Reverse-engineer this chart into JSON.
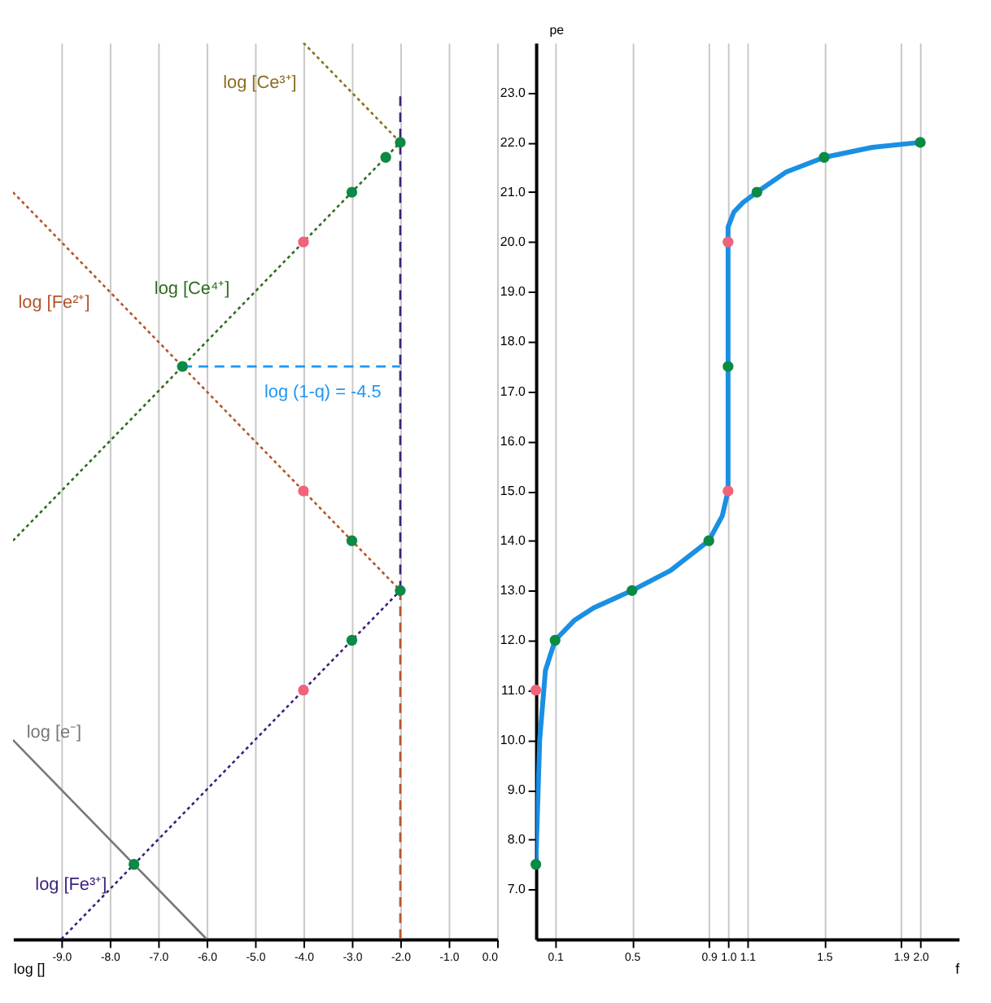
{
  "chart_data": [
    {
      "type": "line",
      "xlabel": "log []",
      "xlim": [
        -10,
        0
      ],
      "ylim": [
        6,
        24
      ],
      "xticks": [
        {
          "value": -9,
          "label": "-9.0"
        },
        {
          "value": -8,
          "label": "-8.0"
        },
        {
          "value": -7,
          "label": "-7.0"
        },
        {
          "value": -6,
          "label": "-6.0"
        },
        {
          "value": -5,
          "label": "-5.0"
        },
        {
          "value": -4,
          "label": "-4.0"
        },
        {
          "value": -3,
          "label": "-3.0"
        },
        {
          "value": -2,
          "label": "-2.0"
        },
        {
          "value": -1,
          "label": "-1.0"
        },
        {
          "value": 0,
          "label": "0.0"
        }
      ],
      "tick_labels": "x",
      "grid": true,
      "line_style": "dotted",
      "series": [
        {
          "color": "#8a6d1e",
          "x": [
            -4,
            -2
          ],
          "values": [
            24,
            22
          ]
        },
        {
          "color": "#2f6b1f",
          "x": [
            -10,
            -2
          ],
          "values": [
            14,
            22
          ]
        },
        {
          "color": "#b5532a",
          "x": [
            -10,
            -2
          ],
          "values": [
            21,
            13
          ]
        },
        {
          "color": "#777777",
          "x": [
            -10,
            -6
          ],
          "values": [
            10,
            6
          ],
          "line_style": "solid"
        },
        {
          "color": "#3b1f7a",
          "x": [
            -9,
            -2
          ],
          "values": [
            6,
            13
          ]
        },
        {
          "color": "#2196f3",
          "x": [
            -6.5,
            -2
          ],
          "values": [
            17.5,
            17.5
          ],
          "line_style": "dashed"
        },
        {
          "color": "#3b1f7a",
          "x": [
            -2,
            -2
          ],
          "values": [
            13,
            23
          ],
          "line_style": "dashed"
        },
        {
          "color": "#b5532a",
          "x": [
            -2,
            -2
          ],
          "values": [
            6,
            13
          ],
          "line_style": "dashed"
        },
        {
          "type": "scatter",
          "marker": "circle",
          "color": "#0b8a45",
          "x": [
            -2,
            -2.3,
            -3,
            -6.5,
            -3,
            -2,
            -3,
            -7.5
          ],
          "values": [
            22,
            21.7,
            21,
            17.5,
            14,
            13,
            12,
            7.5
          ]
        },
        {
          "type": "scatter",
          "marker": "circle",
          "color": "#f0637a",
          "x": [
            -4,
            -4,
            -4
          ],
          "values": [
            20,
            15,
            11
          ]
        }
      ],
      "annotations": [
        "log [Ce³⁺]",
        "log [Ce⁴⁺]",
        "log [Fe²⁺]",
        "log [e⁻]",
        "log [Fe³⁺]",
        "log (1-q) = -4.5"
      ]
    },
    {
      "type": "line",
      "xlabel": "f",
      "ylabel": "pe",
      "xlim": [
        0,
        2.2
      ],
      "ylim": [
        6,
        24
      ],
      "xticks": [
        {
          "value": 0.1,
          "label": "0.1"
        },
        {
          "value": 0.5,
          "label": "0.5"
        },
        {
          "value": 0.9,
          "label": "0.9"
        },
        {
          "value": 1.0,
          "label": "1.0"
        },
        {
          "value": 1.1,
          "label": "1.1"
        },
        {
          "value": 1.5,
          "label": "1.5"
        },
        {
          "value": 1.9,
          "label": "1.9"
        },
        {
          "value": 2.0,
          "label": "2.0"
        }
      ],
      "yticks": [
        {
          "value": 7,
          "label": "7.0"
        },
        {
          "value": 8,
          "label": "8.0"
        },
        {
          "value": 9,
          "label": "9.0"
        },
        {
          "value": 10,
          "label": "10.0"
        },
        {
          "value": 11,
          "label": "11.0"
        },
        {
          "value": 12,
          "label": "12.0"
        },
        {
          "value": 13,
          "label": "13.0"
        },
        {
          "value": 14,
          "label": "14.0"
        },
        {
          "value": 15,
          "label": "15.0"
        },
        {
          "value": 16,
          "label": "16.0"
        },
        {
          "value": 17,
          "label": "17.0"
        },
        {
          "value": 18,
          "label": "18.0"
        },
        {
          "value": 19,
          "label": "19.0"
        },
        {
          "value": 20,
          "label": "20.0"
        },
        {
          "value": 21,
          "label": "21.0"
        },
        {
          "value": 22,
          "label": "22.0"
        },
        {
          "value": 23,
          "label": "23.0"
        }
      ],
      "grid": "x",
      "line_style": "solid",
      "series": [
        {
          "color": "#1a8fe3",
          "x": [
            0,
            0.02,
            0.05,
            0.1,
            0.2,
            0.3,
            0.5,
            0.7,
            0.9,
            0.97,
            1.0,
            1.0,
            1.0,
            1.0,
            1.03,
            1.08,
            1.15,
            1.3,
            1.5,
            1.75,
            2.0
          ],
          "values": [
            7.5,
            10,
            11.4,
            12,
            12.4,
            12.65,
            13,
            13.4,
            14,
            14.5,
            15,
            17.5,
            20,
            20.3,
            20.6,
            20.8,
            21,
            21.4,
            21.7,
            21.9,
            22
          ]
        },
        {
          "type": "scatter",
          "marker": "circle",
          "color": "#0b8a45",
          "x": [
            0,
            0.1,
            0.5,
            0.9,
            1.0,
            1.15,
            1.5,
            2.0
          ],
          "values": [
            7.5,
            12,
            13,
            14,
            17.5,
            21,
            21.7,
            22
          ]
        },
        {
          "type": "scatter",
          "marker": "circle",
          "color": "#f0637a",
          "x": [
            0,
            1.0,
            1.0
          ],
          "values": [
            11,
            15,
            20
          ]
        }
      ]
    }
  ]
}
